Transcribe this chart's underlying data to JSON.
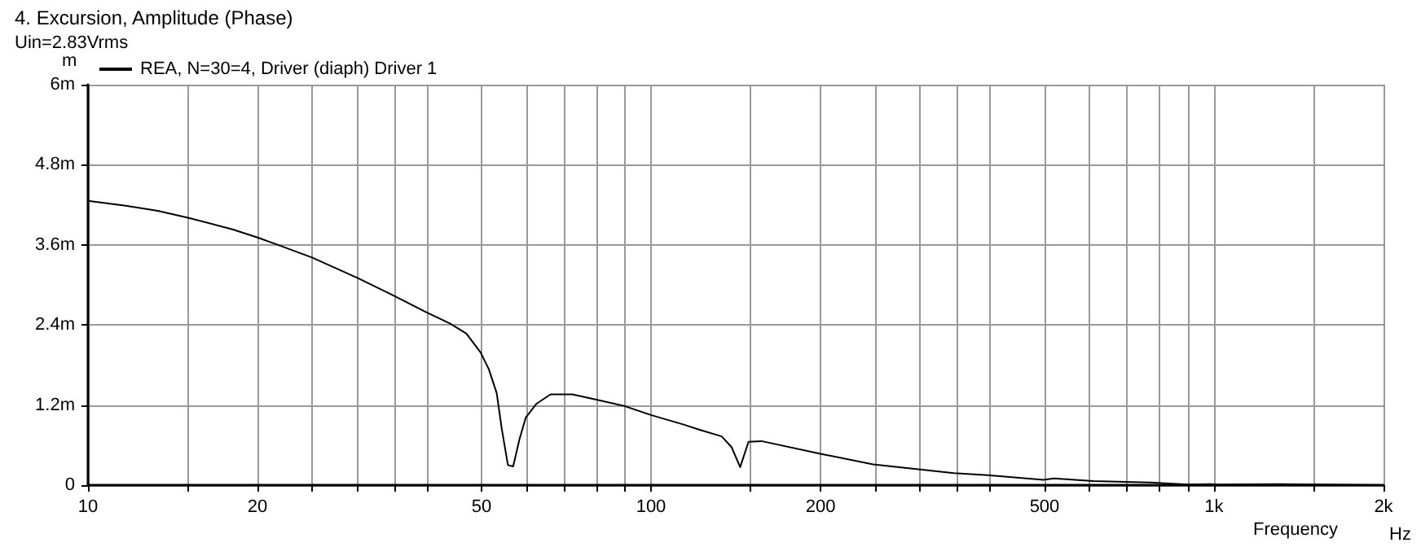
{
  "chart_data": {
    "type": "line",
    "title": "4. Excursion, Amplitude (Phase)",
    "subtitle": "Uin=2.83Vrms",
    "xlabel": "Frequency",
    "ylabel": "m",
    "annotations": [
      "Hz"
    ],
    "series": [
      {
        "name": "REA, N=30=4, Driver (diaph) Driver 1",
        "color": "#000000",
        "x": [
          10,
          11.6,
          13.3,
          15,
          18.1,
          20,
          21.9,
          25,
          30.2,
          34.9,
          39.9,
          44,
          47,
          49.8,
          51.5,
          53.2,
          54.3,
          55.7,
          56.9,
          58.4,
          59.9,
          62.6,
          66.3,
          72.5,
          80,
          89.3,
          100,
          114,
          122,
          133.5,
          139,
          144,
          149,
          157,
          200,
          248,
          345,
          396,
          497,
          520,
          610,
          770,
          900,
          983,
          1020,
          1310,
          1940
        ],
        "values": [
          4.26,
          4.19,
          4.11,
          4.01,
          3.83,
          3.71,
          3.59,
          3.41,
          3.1,
          2.84,
          2.59,
          2.42,
          2.27,
          1.99,
          1.74,
          1.38,
          0.85,
          0.3,
          0.28,
          0.69,
          1.01,
          1.22,
          1.36,
          1.36,
          1.28,
          1.19,
          1.05,
          0.91,
          0.83,
          0.73,
          0.57,
          0.27,
          0.65,
          0.66,
          0.47,
          0.31,
          0.18,
          0.15,
          0.08,
          0.1,
          0.06,
          0.04,
          0.01,
          0.015,
          0.01,
          0.015,
          0
        ]
      }
    ],
    "xlim": [
      10,
      2000
    ],
    "log": "x",
    "xticks": [
      10,
      {
        "value": 15,
        "label": null
      },
      20,
      {
        "value": 25,
        "label": null
      },
      {
        "value": 30,
        "label": null
      },
      {
        "value": 35,
        "label": null
      },
      {
        "value": 40,
        "label": null
      },
      50,
      {
        "value": 60,
        "label": null
      },
      {
        "value": 70,
        "label": null
      },
      {
        "value": 80,
        "label": null
      },
      {
        "value": 90,
        "label": null
      },
      100,
      {
        "value": 150,
        "label": null
      },
      200,
      {
        "value": 250,
        "label": null
      },
      {
        "value": 300,
        "label": null
      },
      {
        "value": 350,
        "label": null
      },
      {
        "value": 400,
        "label": null
      },
      500,
      {
        "value": 600,
        "label": null
      },
      {
        "value": 700,
        "label": null
      },
      {
        "value": 800,
        "label": null
      },
      {
        "value": 900,
        "label": null
      },
      {
        "value": 1000,
        "label": "1k"
      },
      {
        "value": 1500,
        "label": null
      },
      {
        "value": 2000,
        "label": "2k"
      }
    ],
    "ylim": [
      0,
      6
    ],
    "yticks": [
      0,
      {
        "value": 1.2,
        "label": "1.2m"
      },
      {
        "value": 2.4,
        "label": "2.4m"
      },
      {
        "value": 3.6,
        "label": "3.6m"
      },
      {
        "value": 4.8,
        "label": "4.8m"
      },
      {
        "value": 6,
        "label": "6m"
      }
    ],
    "grid": true,
    "legend": "top left",
    "marker": "none",
    "line_style": "solid"
  }
}
